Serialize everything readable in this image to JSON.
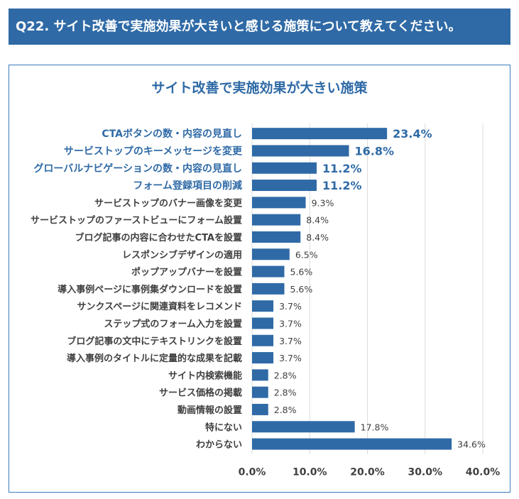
{
  "question": "Q22. サイト改善で実施効果が大きいと感じる施策について教えてください。",
  "chart_data": {
    "type": "bar",
    "orientation": "horizontal",
    "title": "サイト改善で実施効果が大きい施策",
    "categories": [
      "CTAボタンの数・内容の見直し",
      "サービストップのキーメッセージを変更",
      "グローバルナビゲーションの数・内容の見直し",
      "フォーム登録項目の削減",
      "サービストップのバナー画像を変更",
      "サービストップのファーストビューにフォーム設置",
      "ブログ記事の内容に合わせたCTAを設置",
      "レスポンシブデザインの適用",
      "ポップアップバナーを設置",
      "導入事例ページに事例集ダウンロードを設置",
      "サンクスページに関連資料をレコメンド",
      "ステップ式のフォーム入力を設置",
      "ブログ記事の文中にテキストリンクを設置",
      "導入事例のタイトルに定量的な成果を記載",
      "サイト内検索機能",
      "サービス価格の掲載",
      "動画情報の設置",
      "特にない",
      "わからない"
    ],
    "values": [
      23.4,
      16.8,
      11.2,
      11.2,
      9.3,
      8.4,
      8.4,
      6.5,
      5.6,
      5.6,
      3.7,
      3.7,
      3.7,
      3.7,
      2.8,
      2.8,
      2.8,
      17.8,
      34.6
    ],
    "value_labels": [
      "23.4%",
      "16.8%",
      "11.2%",
      "11.2%",
      "9.3%",
      "8.4%",
      "8.4%",
      "6.5%",
      "5.6%",
      "5.6%",
      "3.7%",
      "3.7%",
      "3.7%",
      "3.7%",
      "2.8%",
      "2.8%",
      "2.8%",
      "17.8%",
      "34.6%"
    ],
    "highlighted_count": 4,
    "xlim": [
      0,
      40
    ],
    "xticks": [
      0,
      10,
      20,
      30,
      40
    ],
    "xtick_labels": [
      "0.0%",
      "10.0%",
      "20.0%",
      "30.0%",
      "40.0%"
    ],
    "grid": true,
    "colors": {
      "bar": "#2f6aa6",
      "highlight_text": "#2f6aa6",
      "text": "#404040",
      "header_bg": "#2f6aa6"
    }
  }
}
